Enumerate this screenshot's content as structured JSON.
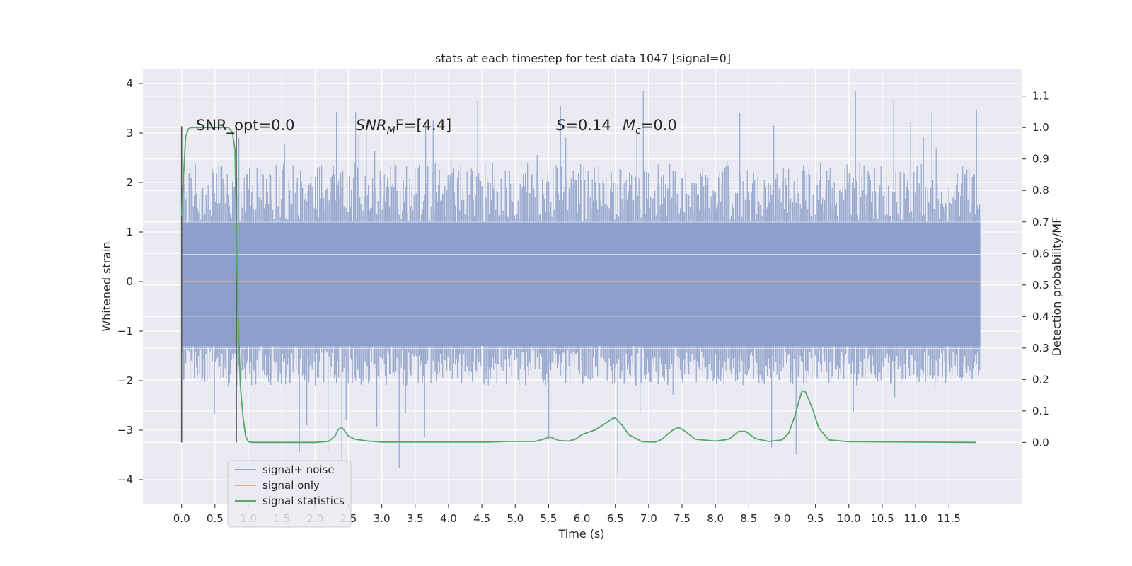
{
  "chart_data": {
    "type": "line",
    "title": "stats at each timestep for test data 1047 [signal=0]",
    "xlabel": "Time (s)",
    "ylabel_left": "Whitened strain",
    "ylabel_right": "Detection probability/MF",
    "xlim": [
      -0.58,
      12.6
    ],
    "ylim_left": [
      -4.5,
      4.3
    ],
    "ylim_right": [
      -0.197,
      1.187
    ],
    "xticks": [
      "0.0",
      "0.5",
      "1.0",
      "1.5",
      "2.0",
      "2.5",
      "3.0",
      "3.5",
      "4.0",
      "4.5",
      "5.0",
      "5.5",
      "6.0",
      "6.5",
      "7.0",
      "7.5",
      "8.0",
      "8.5",
      "9.0",
      "9.5",
      "10.0",
      "10.5",
      "11.0",
      "11.5"
    ],
    "yticks_left": [
      "4",
      "3",
      "2",
      "1",
      "0",
      "−1",
      "−2",
      "−3",
      "−4"
    ],
    "yticks_right": [
      "1.1",
      "1.0",
      "0.9",
      "0.8",
      "0.7",
      "0.6",
      "0.5",
      "0.4",
      "0.3",
      "0.2",
      "0.1",
      "0.0"
    ],
    "grid": true,
    "legend_placement": "lower-left",
    "annotations": {
      "snr_opt": "SNR_opt=0.0",
      "snr_mf_main": "SNR",
      "snr_mf_sub": "M",
      "snr_mf_rest": "F=[4.4]",
      "s_main": "S",
      "s_rest": "=0.14",
      "mc_main": "M",
      "mc_sub": "c",
      "mc_rest": "=0.0"
    },
    "vlines_x": [
      0.0,
      0.82
    ],
    "noise": {
      "x_range": [
        0.0,
        11.97
      ],
      "core_band": [
        -1.3,
        1.2
      ],
      "typical_envelope": [
        -2.1,
        2.4
      ],
      "extreme_range": [
        -4.05,
        3.9
      ],
      "color": "#8da0cb"
    },
    "signal_only_value": 0.0,
    "series": [
      {
        "name": "signal+ noise",
        "color": "#8fa3cc"
      },
      {
        "name": "signal only",
        "color": "#e5a98c"
      },
      {
        "name": "signal statistics",
        "color": "#55a868",
        "x": [
          0.0,
          0.03,
          0.06,
          0.1,
          0.14,
          0.2,
          0.3,
          0.45,
          0.6,
          0.7,
          0.76,
          0.8,
          0.84,
          0.88,
          0.92,
          0.96,
          1.0,
          1.06,
          1.2,
          1.6,
          2.0,
          2.2,
          2.3,
          2.35,
          2.4,
          2.45,
          2.5,
          2.6,
          2.8,
          3.0,
          4.0,
          4.6,
          4.9,
          5.3,
          5.45,
          5.5,
          5.55,
          5.65,
          5.8,
          5.9,
          6.0,
          6.2,
          6.35,
          6.45,
          6.5,
          6.6,
          6.7,
          6.9,
          7.1,
          7.2,
          7.35,
          7.45,
          7.55,
          7.7,
          8.0,
          8.2,
          8.35,
          8.45,
          8.6,
          8.8,
          9.0,
          9.1,
          9.2,
          9.25,
          9.3,
          9.35,
          9.45,
          9.55,
          9.7,
          10.0,
          11.0,
          11.9
        ],
        "y": [
          0.72,
          0.85,
          0.97,
          0.995,
          1.0,
          1.0,
          1.0,
          1.0,
          1.0,
          1.0,
          0.985,
          0.93,
          0.45,
          0.18,
          0.08,
          0.02,
          0.002,
          0.0,
          0.0,
          0.0,
          0.0,
          0.003,
          0.02,
          0.042,
          0.048,
          0.035,
          0.02,
          0.01,
          0.004,
          0.001,
          0.001,
          0.001,
          0.003,
          0.003,
          0.012,
          0.018,
          0.015,
          0.006,
          0.004,
          0.01,
          0.025,
          0.04,
          0.06,
          0.075,
          0.078,
          0.055,
          0.025,
          0.002,
          0.001,
          0.01,
          0.038,
          0.048,
          0.035,
          0.01,
          0.004,
          0.01,
          0.035,
          0.035,
          0.012,
          0.003,
          0.008,
          0.03,
          0.09,
          0.13,
          0.165,
          0.16,
          0.11,
          0.045,
          0.008,
          0.002,
          0.001,
          0.0
        ]
      }
    ]
  }
}
